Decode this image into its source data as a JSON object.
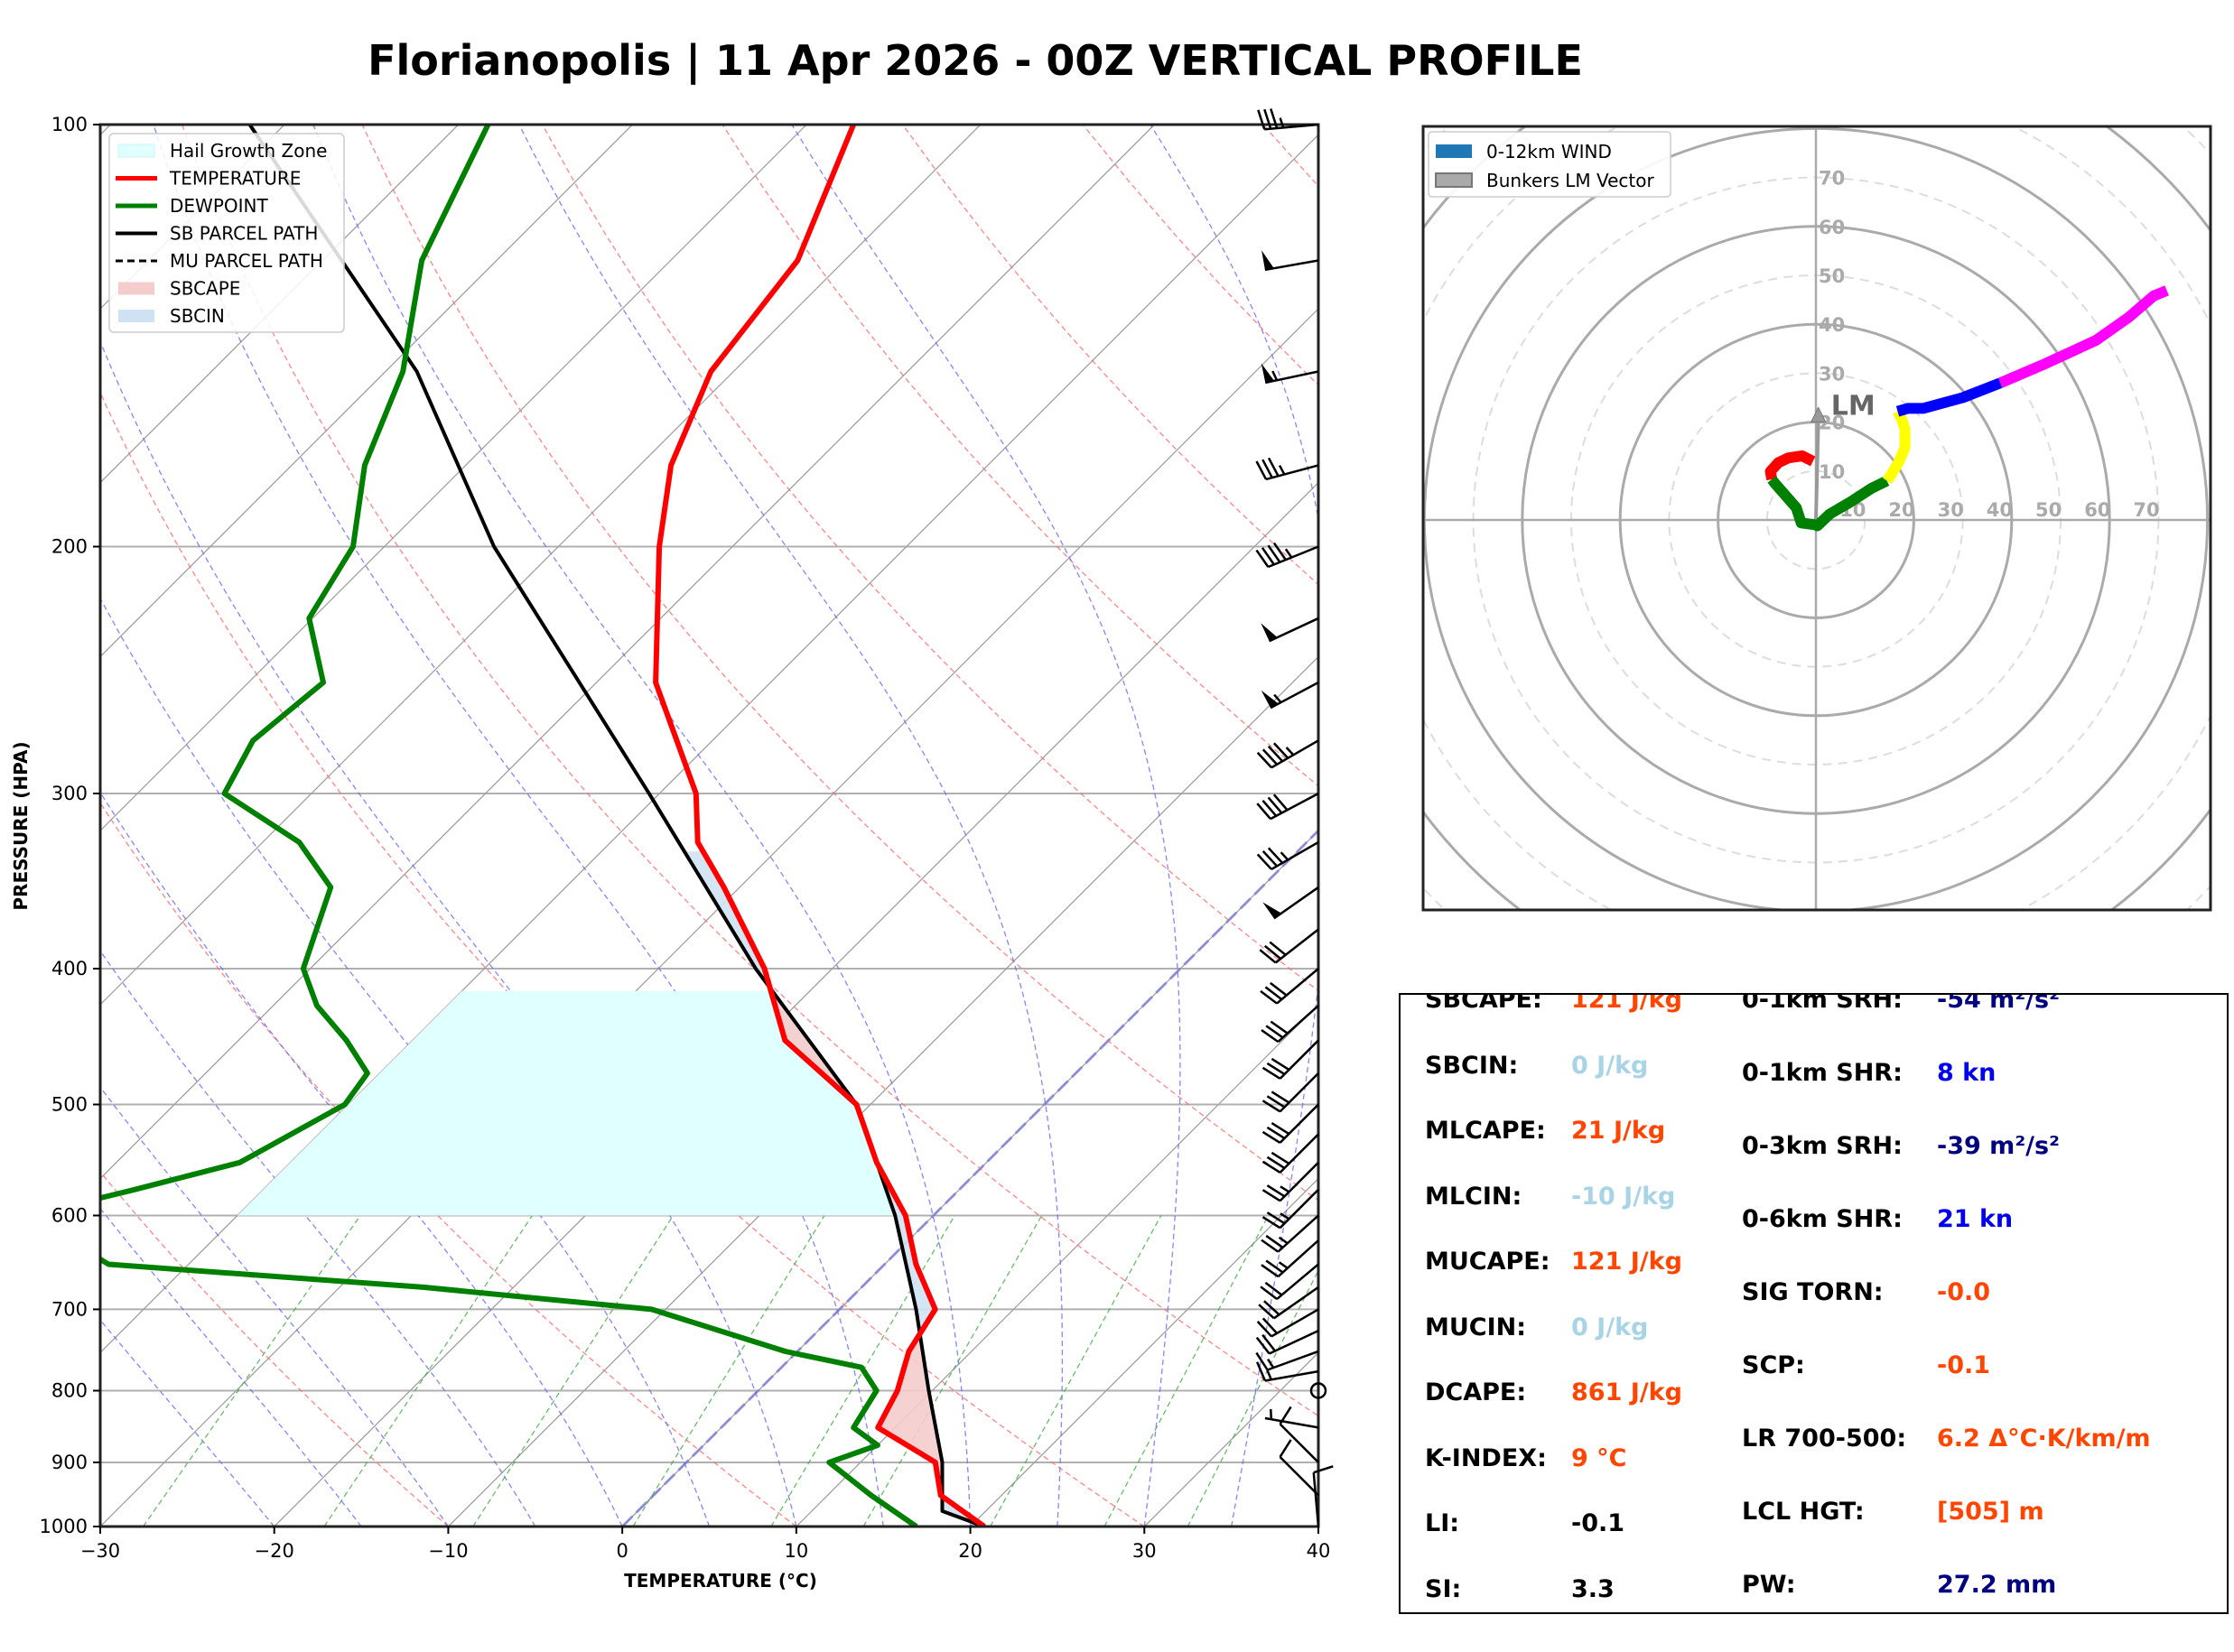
{
  "title": "Florianopolis | 11 Apr 2026 - 00Z VERTICAL PROFILE",
  "colors": {
    "temperature": "#ff0000",
    "dewpoint": "#008000",
    "parcel": "#000000",
    "hail_zone": "#e0ffff",
    "sbcape": "#f4cccc",
    "sbcin": "#cfe2f3",
    "dry_adiabat": "#ff6666",
    "moist_adiabat": "#6666ff",
    "mixing_ratio": "#44aa44",
    "isotherm": "#a0a0a0",
    "warn": "#ff4500",
    "cin": "#a8d4e6",
    "blue": "#0000ee",
    "navy": "#000080"
  },
  "chart_data": [
    {
      "type": "line",
      "name": "skew-t",
      "xlabel": "TEMPERATURE (°C)",
      "ylabel": "PRESSURE (HPA)",
      "xlim": [
        -30,
        40
      ],
      "ylim": [
        1000,
        100
      ],
      "xticks": [
        "−30",
        "−20",
        "−10",
        "0",
        "10",
        "20",
        "30",
        "40"
      ],
      "xtick_values": [
        -30,
        -20,
        -10,
        0,
        10,
        20,
        30,
        40
      ],
      "yticks": [
        "100",
        "200",
        "300",
        "400",
        "500",
        "600",
        "700",
        "800",
        "900",
        "1000"
      ],
      "ytick_values": [
        100,
        200,
        300,
        400,
        500,
        600,
        700,
        800,
        900,
        1000
      ],
      "legend": {
        "position": "top-left",
        "entries": [
          "Hail Growth Zone",
          "TEMPERATURE",
          "DEWPOINT",
          "SB PARCEL PATH",
          "MU PARCEL PATH",
          "SBCAPE",
          "SBCIN"
        ]
      },
      "temperature": {
        "p": [
          1000,
          950,
          900,
          850,
          800,
          750,
          700,
          650,
          600,
          550,
          500,
          450,
          400,
          350,
          325,
          300,
          250,
          200,
          175,
          150,
          125,
          100
        ],
        "t": [
          20.8,
          16.5,
          14.3,
          9.0,
          8.0,
          6.4,
          5.5,
          1.8,
          -1.6,
          -6.3,
          -10.8,
          -18.6,
          -23.9,
          -30.9,
          -35.0,
          -37.9,
          -46.6,
          -54.2,
          -58.2,
          -61.3,
          -62.7,
          -67.3
        ]
      },
      "dewpoint": {
        "p": [
          1000,
          950,
          900,
          875,
          850,
          800,
          770,
          750,
          700,
          675,
          650,
          600,
          575,
          550,
          500,
          475,
          450,
          425,
          400,
          350,
          325,
          300,
          275,
          250,
          225,
          200,
          175,
          150,
          125,
          100
        ],
        "td": [
          16.9,
          12.5,
          8.2,
          10.0,
          7.6,
          6.8,
          4.6,
          -0.7,
          -10.8,
          -25.2,
          -44.6,
          -52.0,
          -47.4,
          -42.9,
          -40.2,
          -40.7,
          -43.8,
          -47.5,
          -50.4,
          -53.5,
          -57.9,
          -65.0,
          -66.4,
          -65.7,
          -70.2,
          -71.8,
          -75.8,
          -79.0,
          -84.3,
          -88.3
        ]
      },
      "sb_parcel": {
        "p": [
          1000,
          975,
          900,
          800,
          700,
          600,
          500,
          400,
          300,
          200,
          150,
          100
        ],
        "t": [
          20.8,
          17.5,
          14.7,
          9.8,
          4.4,
          -2.2,
          -10.8,
          -24.4,
          -40.6,
          -63.7,
          -78.2,
          -102.0
        ]
      },
      "hail_growth_zone": {
        "p_bottom": 600,
        "p_top": 415,
        "t_range_c": [
          -10,
          -30
        ]
      },
      "wind_barbs": {
        "p": [
          100,
          125,
          150,
          175,
          200,
          225,
          250,
          275,
          300,
          325,
          350,
          375,
          400,
          425,
          450,
          475,
          500,
          525,
          550,
          575,
          600,
          625,
          650,
          675,
          700,
          725,
          750,
          775,
          800,
          850,
          900,
          950,
          1000
        ],
        "dir": [
          265,
          260,
          258,
          255,
          248,
          245,
          242,
          240,
          242,
          240,
          235,
          232,
          230,
          228,
          225,
          225,
          225,
          225,
          225,
          225,
          228,
          228,
          230,
          235,
          240,
          245,
          250,
          260,
          0,
          280,
          315,
          315,
          355
        ],
        "spd": [
          35,
          50,
          55,
          35,
          45,
          50,
          55,
          45,
          40,
          35,
          50,
          30,
          30,
          30,
          30,
          30,
          30,
          30,
          25,
          25,
          25,
          25,
          20,
          20,
          20,
          20,
          15,
          15,
          0,
          5,
          10,
          10,
          10
        ]
      }
    },
    {
      "type": "line",
      "name": "hodograph",
      "units": "kt",
      "rings": [
        10,
        20,
        30,
        40,
        50,
        60,
        70
      ],
      "ring_labels": [
        "10",
        "20",
        "30",
        "40",
        "50",
        "60",
        "70"
      ],
      "legend": {
        "position": "top-left",
        "entries": [
          "0-12km WIND",
          "Bunkers LM Vector"
        ]
      },
      "lm_label": "LM",
      "lm_vector": {
        "u": 0.5,
        "v": 23.0
      },
      "segments": [
        {
          "layer": "0-1km",
          "color": "#ff0000",
          "u": [
            -0.6,
            -2.8,
            -5.6,
            -7.7,
            -9.3,
            -9.0
          ],
          "v": [
            12.0,
            13.1,
            12.7,
            11.7,
            9.9,
            8.3
          ]
        },
        {
          "layer": "1-3km",
          "color": "#008000",
          "u": [
            -9.0,
            -8.3,
            -4.0,
            -3.0,
            0.0,
            0.3,
            2.8,
            7.1,
            11.4,
            14.5
          ],
          "v": [
            8.3,
            7.4,
            2.5,
            -0.6,
            -1.0,
            -1.2,
            1.2,
            3.7,
            6.5,
            8.0
          ]
        },
        {
          "layer": "3-6km",
          "color": "#ffff00",
          "u": [
            14.5,
            15.4,
            17.0,
            18.2,
            18.2,
            17.6,
            16.7
          ],
          "v": [
            8.0,
            9.3,
            12.0,
            14.8,
            18.5,
            20.4,
            22.2
          ]
        },
        {
          "layer": "6-9km",
          "color": "#0000ff",
          "u": [
            16.7,
            18.8,
            21.9,
            30.0,
            37.7
          ],
          "v": [
            22.2,
            22.8,
            22.8,
            25.0,
            28.0
          ]
        },
        {
          "layer": "9-12km",
          "color": "#ff00ff",
          "u": [
            37.7,
            47.0,
            57.2,
            64.0,
            69.0,
            71.7
          ],
          "v": [
            28.0,
            32.0,
            36.7,
            41.5,
            45.8,
            46.9
          ]
        }
      ]
    }
  ],
  "stats": {
    "left": [
      {
        "label": "SBCAPE:",
        "value": "121 J/kg",
        "color": "#ff4500"
      },
      {
        "label": "SBCIN:",
        "value": "0 J/kg",
        "color": "#a8d4e6"
      },
      {
        "label": "MLCAPE:",
        "value": "21 J/kg",
        "color": "#ff4500"
      },
      {
        "label": "MLCIN:",
        "value": "-10 J/kg",
        "color": "#a8d4e6"
      },
      {
        "label": "MUCAPE:",
        "value": "121 J/kg",
        "color": "#ff4500"
      },
      {
        "label": "MUCIN:",
        "value": "0 J/kg",
        "color": "#a8d4e6"
      },
      {
        "label": "DCAPE:",
        "value": "861 J/kg",
        "color": "#ff4500"
      },
      {
        "label": "K-INDEX:",
        "value": "9 °C",
        "color": "#ff4500"
      },
      {
        "label": "LI:",
        "value": "-0.1",
        "color": "#000000"
      },
      {
        "label": "SI:",
        "value": "3.3",
        "color": "#000000"
      }
    ],
    "right": [
      {
        "label": "0-1km SRH:",
        "value": "-54 m²/s²",
        "color": "#000080"
      },
      {
        "label": "0-1km SHR:",
        "value": "8 kn",
        "color": "#0000ee"
      },
      {
        "label": "0-3km SRH:",
        "value": "-39 m²/s²",
        "color": "#000080"
      },
      {
        "label": "0-6km SHR:",
        "value": "21 kn",
        "color": "#0000ee"
      },
      {
        "label": "SIG TORN:",
        "value": "-0.0",
        "color": "#ff4500"
      },
      {
        "label": "SCP:",
        "value": "-0.1",
        "color": "#ff4500"
      },
      {
        "label": "LR 700-500:",
        "value": "6.2 Δ°C·K/km/m",
        "color": "#ff4500"
      },
      {
        "label": "LCL HGT:",
        "value": "[505] m",
        "color": "#ff4500"
      },
      {
        "label": "PW:",
        "value": "27.2 mm",
        "color": "#000080"
      }
    ]
  }
}
